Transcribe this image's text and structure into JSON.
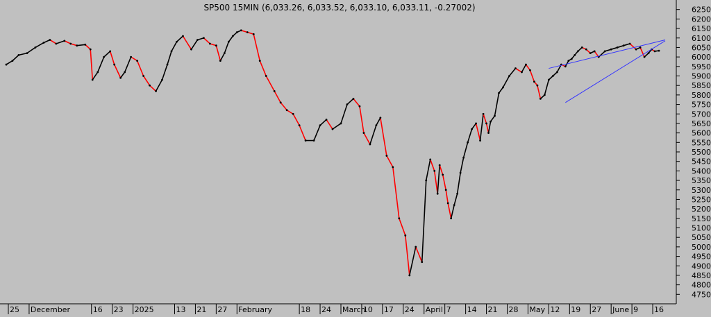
{
  "chart_data": {
    "type": "line",
    "title": "SP500 15MIN (6,033.26, 6,033.52, 6,033.10, 6,033.11, -0.27002)",
    "xlabel": "",
    "ylabel": "",
    "ylim": [
      4700,
      6300
    ],
    "y_ticks": [
      4750,
      4800,
      4850,
      4900,
      4950,
      5000,
      5050,
      5100,
      5150,
      5200,
      5250,
      5300,
      5350,
      5400,
      5450,
      5500,
      5550,
      5600,
      5650,
      5700,
      5750,
      5800,
      5850,
      5900,
      5950,
      6000,
      6050,
      6100,
      6150,
      6200,
      6250
    ],
    "x_tick_labels": [
      "25",
      "December",
      "16",
      "23",
      "2025",
      "13",
      "21",
      "27",
      "February",
      "18",
      "24",
      "March",
      "10",
      "17",
      "24",
      "April",
      "7",
      "14",
      "21",
      "28",
      "May",
      "12",
      "19",
      "27",
      "June",
      "9",
      "16"
    ],
    "x_tick_units": [
      0,
      1,
      4,
      5,
      6,
      8,
      9,
      10,
      11,
      14,
      15,
      16,
      17,
      18,
      19,
      20,
      21,
      22,
      23,
      24,
      25,
      26,
      27,
      28,
      29,
      30,
      31
    ],
    "x_range_units": [
      -0.1,
      31.8
    ],
    "grid": false,
    "series": [
      {
        "name": "",
        "color": "#000000",
        "down_color": "#ff0000",
        "x": [
          -0.1,
          0.2,
          0.5,
          0.9,
          1.3,
          1.7,
          2.0,
          2.3,
          2.7,
          3.0,
          3.3,
          3.7,
          3.95,
          4.05,
          4.3,
          4.6,
          4.9,
          5.1,
          5.4,
          5.6,
          5.9,
          6.2,
          6.5,
          6.8,
          7.1,
          7.4,
          7.65,
          7.85,
          8.1,
          8.4,
          8.8,
          9.1,
          9.4,
          9.7,
          10.0,
          10.2,
          10.4,
          10.6,
          10.8,
          11.0,
          11.2,
          11.5,
          11.8,
          12.1,
          12.4,
          12.8,
          13.1,
          13.4,
          13.7,
          14.0,
          14.3,
          14.7,
          15.0,
          15.3,
          15.6,
          16.0,
          16.3,
          16.6,
          16.9,
          17.1,
          17.4,
          17.7,
          17.9,
          18.2,
          18.5,
          18.8,
          19.1,
          19.3,
          19.6,
          19.9,
          20.1,
          20.3,
          20.5,
          20.65,
          20.75,
          20.9,
          21.05,
          21.15,
          21.3,
          21.45,
          21.6,
          21.75,
          21.9,
          22.1,
          22.3,
          22.5,
          22.7,
          22.85,
          23.0,
          23.1,
          23.2,
          23.4,
          23.6,
          23.8,
          24.1,
          24.4,
          24.7,
          24.9,
          25.1,
          25.3,
          25.45,
          25.6,
          25.8,
          26.0,
          26.2,
          26.4,
          26.6,
          26.8,
          26.95,
          27.1,
          27.25,
          27.4,
          27.6,
          27.8,
          28.0,
          28.2,
          28.4,
          28.7,
          29.0,
          29.3,
          29.6,
          29.9,
          30.2,
          30.4,
          30.6,
          30.8,
          30.95,
          31.1,
          31.3
        ],
        "values": [
          5960,
          5980,
          6010,
          6020,
          6050,
          6075,
          6090,
          6070,
          6085,
          6070,
          6060,
          6065,
          6040,
          5880,
          5920,
          6000,
          6030,
          5960,
          5890,
          5920,
          6000,
          5980,
          5900,
          5850,
          5820,
          5880,
          5960,
          6030,
          6080,
          6110,
          6040,
          6090,
          6100,
          6070,
          6060,
          5980,
          6020,
          6080,
          6110,
          6130,
          6140,
          6130,
          6120,
          5980,
          5900,
          5820,
          5760,
          5720,
          5700,
          5640,
          5560,
          5560,
          5640,
          5670,
          5620,
          5650,
          5750,
          5780,
          5740,
          5600,
          5540,
          5640,
          5680,
          5480,
          5420,
          5150,
          5060,
          4850,
          5000,
          4920,
          5350,
          5460,
          5400,
          5280,
          5430,
          5380,
          5300,
          5230,
          5150,
          5220,
          5280,
          5390,
          5470,
          5550,
          5620,
          5650,
          5560,
          5700,
          5650,
          5600,
          5660,
          5690,
          5810,
          5840,
          5900,
          5940,
          5920,
          5960,
          5930,
          5870,
          5850,
          5780,
          5800,
          5880,
          5900,
          5920,
          5960,
          5950,
          5980,
          5990,
          6010,
          6030,
          6050,
          6040,
          6020,
          6030,
          6000,
          6030,
          6040,
          6050,
          6060,
          6070,
          6040,
          6050,
          6000,
          6020,
          6040,
          6030,
          6033
        ]
      }
    ],
    "trendlines": [
      {
        "x": [
          26.0,
          31.6
        ],
        "values": [
          5940,
          6090
        ],
        "color": "#3333ff"
      },
      {
        "x": [
          26.8,
          31.6
        ],
        "values": [
          5760,
          6085
        ],
        "color": "#3333ff"
      }
    ]
  }
}
